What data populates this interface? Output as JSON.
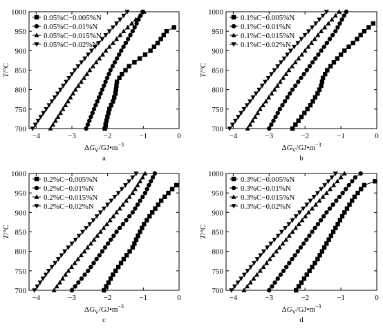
{
  "chart_data": [
    {
      "panel": "a",
      "type": "line",
      "ylabel": "T/°C",
      "xlabel": "ΔGV/GJ·m⁻³",
      "ylim": [
        700,
        1000
      ],
      "xlim": [
        -4.2,
        0
      ],
      "yticks": [
        700,
        750,
        800,
        850,
        900,
        950,
        1000
      ],
      "xticks": [
        -4,
        -3,
        -2,
        -1,
        0
      ],
      "grid": false,
      "legend_position": "top-left",
      "series": [
        {
          "name": "0.05%C−0.005%N",
          "marker": "square",
          "points": [
            [
              -2.08,
              700
            ],
            [
              -2.02,
              725
            ],
            [
              -1.95,
              750
            ],
            [
              -1.85,
              770
            ],
            [
              -1.78,
              790
            ],
            [
              -1.74,
              820
            ],
            [
              -1.6,
              840
            ],
            [
              -1.4,
              860
            ],
            [
              -1.1,
              880
            ],
            [
              -0.8,
              900
            ],
            [
              -0.55,
              925
            ],
            [
              -0.35,
              950
            ],
            [
              -0.1,
              962
            ]
          ]
        },
        {
          "name": "0.05%C−0.01%N",
          "marker": "circle",
          "points": [
            [
              -2.6,
              700
            ],
            [
              -2.38,
              750
            ],
            [
              -2.15,
              800
            ],
            [
              -1.92,
              850
            ],
            [
              -1.62,
              900
            ],
            [
              -1.3,
              950
            ],
            [
              -1.02,
              1000
            ]
          ]
        },
        {
          "name": "0.05%C−0.015%N",
          "marker": "triangle-up",
          "points": [
            [
              -3.6,
              700
            ],
            [
              -3.25,
              750
            ],
            [
              -2.9,
              800
            ],
            [
              -2.5,
              850
            ],
            [
              -2.05,
              900
            ],
            [
              -1.55,
              950
            ],
            [
              -1.1,
              990
            ],
            [
              -0.98,
              1000
            ]
          ]
        },
        {
          "name": "0.05%C−0.02%N",
          "marker": "triangle-down",
          "points": [
            [
              -4.1,
              700
            ],
            [
              -3.72,
              750
            ],
            [
              -3.32,
              800
            ],
            [
              -2.92,
              850
            ],
            [
              -2.45,
              900
            ],
            [
              -1.95,
              950
            ],
            [
              -1.45,
              1000
            ]
          ]
        }
      ]
    },
    {
      "panel": "b",
      "type": "line",
      "ylabel": "T/°C",
      "xlabel": "ΔGV/GJ·m⁻³",
      "ylim": [
        700,
        1000
      ],
      "xlim": [
        -4.2,
        0
      ],
      "yticks": [
        700,
        750,
        800,
        850,
        900,
        950,
        1000
      ],
      "xticks": [
        -4,
        -3,
        -2,
        -1,
        0
      ],
      "grid": false,
      "legend_position": "top-left",
      "series": [
        {
          "name": "0.1%C−0.005%N",
          "marker": "square",
          "points": [
            [
              -2.35,
              700
            ],
            [
              -2.1,
              730
            ],
            [
              -1.85,
              760
            ],
            [
              -1.65,
              790
            ],
            [
              -1.55,
              810
            ],
            [
              -1.5,
              830
            ],
            [
              -1.38,
              850
            ],
            [
              -1.15,
              875
            ],
            [
              -0.9,
              900
            ],
            [
              -0.6,
              925
            ],
            [
              -0.35,
              950
            ],
            [
              -0.1,
              970
            ]
          ]
        },
        {
          "name": "0.1%C−0.01%N",
          "marker": "circle",
          "points": [
            [
              -3.0,
              700
            ],
            [
              -2.7,
              750
            ],
            [
              -2.35,
              800
            ],
            [
              -1.95,
              850
            ],
            [
              -1.55,
              900
            ],
            [
              -1.15,
              950
            ],
            [
              -0.85,
              1000
            ]
          ]
        },
        {
          "name": "0.1%C−0.015%N",
          "marker": "triangle-up",
          "points": [
            [
              -3.6,
              700
            ],
            [
              -3.25,
              750
            ],
            [
              -2.85,
              800
            ],
            [
              -2.45,
              850
            ],
            [
              -2.0,
              900
            ],
            [
              -1.55,
              950
            ],
            [
              -1.05,
              1000
            ]
          ]
        },
        {
          "name": "0.1%C−0.02%N",
          "marker": "triangle-down",
          "points": [
            [
              -4.1,
              700
            ],
            [
              -3.7,
              750
            ],
            [
              -3.28,
              800
            ],
            [
              -2.85,
              850
            ],
            [
              -2.4,
              900
            ],
            [
              -1.9,
              950
            ],
            [
              -1.4,
              1000
            ]
          ]
        }
      ]
    },
    {
      "panel": "c",
      "type": "line",
      "ylabel": "T/°C",
      "xlabel": "ΔGV/GJ·m⁻³",
      "ylim": [
        700,
        1000
      ],
      "xlim": [
        -4.2,
        0
      ],
      "yticks": [
        700,
        750,
        800,
        850,
        900,
        950,
        1000
      ],
      "xticks": [
        -4,
        -3,
        -2,
        -1,
        0
      ],
      "grid": false,
      "legend_position": "top-left",
      "series": [
        {
          "name": "0.2%C−0.005%N",
          "marker": "square",
          "points": [
            [
              -2.1,
              700
            ],
            [
              -1.85,
              740
            ],
            [
              -1.55,
              780
            ],
            [
              -1.3,
              810
            ],
            [
              -1.15,
              840
            ],
            [
              -0.98,
              870
            ],
            [
              -0.75,
              900
            ],
            [
              -0.5,
              930
            ],
            [
              -0.25,
              955
            ],
            [
              -0.05,
              972
            ]
          ]
        },
        {
          "name": "0.2%C−0.01%N",
          "marker": "circle",
          "points": [
            [
              -3.0,
              700
            ],
            [
              -2.55,
              750
            ],
            [
              -2.15,
              800
            ],
            [
              -1.75,
              850
            ],
            [
              -1.3,
              900
            ],
            [
              -0.95,
              950
            ],
            [
              -0.68,
              1000
            ]
          ]
        },
        {
          "name": "0.2%C−0.015%N",
          "marker": "triangle-up",
          "points": [
            [
              -3.5,
              700
            ],
            [
              -3.1,
              750
            ],
            [
              -2.65,
              800
            ],
            [
              -2.2,
              850
            ],
            [
              -1.75,
              900
            ],
            [
              -1.3,
              950
            ],
            [
              -0.95,
              1000
            ]
          ]
        },
        {
          "name": "0.2%C−0.02%N",
          "marker": "triangle-down",
          "points": [
            [
              -4.05,
              700
            ],
            [
              -3.65,
              750
            ],
            [
              -3.2,
              800
            ],
            [
              -2.7,
              850
            ],
            [
              -2.2,
              900
            ],
            [
              -1.7,
              950
            ],
            [
              -1.2,
              1000
            ]
          ]
        }
      ]
    },
    {
      "panel": "d",
      "type": "line",
      "ylabel": "T/°C",
      "xlabel": "ΔGV/GJ·m⁻³",
      "ylim": [
        700,
        1000
      ],
      "xlim": [
        -4.2,
        0
      ],
      "yticks": [
        700,
        750,
        800,
        850,
        900,
        950,
        1000
      ],
      "xticks": [
        -4,
        -3,
        -2,
        -1,
        0
      ],
      "grid": false,
      "legend_position": "top-left",
      "series": [
        {
          "name": "0.3%C−0.005%N",
          "marker": "square",
          "points": [
            [
              -2.25,
              700
            ],
            [
              -1.95,
              740
            ],
            [
              -1.65,
              780
            ],
            [
              -1.4,
              820
            ],
            [
              -1.15,
              860
            ],
            [
              -0.9,
              900
            ],
            [
              -0.62,
              940
            ],
            [
              -0.35,
              970
            ],
            [
              -0.05,
              980
            ]
          ]
        },
        {
          "name": "0.3%C−0.01%N",
          "marker": "circle",
          "points": [
            [
              -3.0,
              700
            ],
            [
              -2.6,
              750
            ],
            [
              -2.2,
              800
            ],
            [
              -1.8,
              850
            ],
            [
              -1.4,
              900
            ],
            [
              -0.95,
              950
            ],
            [
              -0.6,
              990
            ],
            [
              -0.45,
              1000
            ]
          ]
        },
        {
          "name": "0.3%C−0.015%N",
          "marker": "triangle-up",
          "points": [
            [
              -3.7,
              700
            ],
            [
              -3.25,
              750
            ],
            [
              -2.8,
              800
            ],
            [
              -2.35,
              850
            ],
            [
              -1.9,
              900
            ],
            [
              -1.4,
              950
            ],
            [
              -0.9,
              1000
            ]
          ]
        },
        {
          "name": "0.3%C−0.02%N",
          "marker": "triangle-down",
          "points": [
            [
              -4.05,
              700
            ],
            [
              -3.6,
              750
            ],
            [
              -3.15,
              800
            ],
            [
              -2.65,
              850
            ],
            [
              -2.15,
              900
            ],
            [
              -1.65,
              950
            ],
            [
              -1.15,
              1000
            ]
          ]
        }
      ]
    }
  ]
}
